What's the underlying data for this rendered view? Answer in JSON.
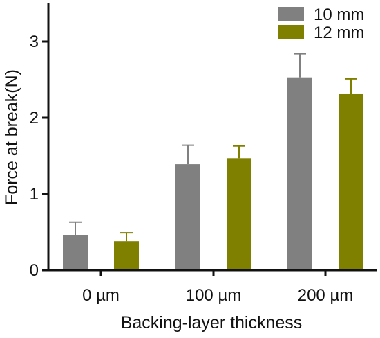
{
  "chart_data": {
    "type": "bar",
    "categories": [
      "0 µm",
      "100 µm",
      "200 µm"
    ],
    "series": [
      {
        "name": "10 mm",
        "color": "#808080",
        "values": [
          0.46,
          1.39,
          2.53
        ],
        "errors": [
          0.17,
          0.25,
          0.31
        ]
      },
      {
        "name": "12 mm",
        "color": "#808000",
        "values": [
          0.38,
          1.47,
          2.31
        ],
        "errors": [
          0.11,
          0.16,
          0.2
        ]
      }
    ],
    "title": "",
    "xlabel": "Backing-layer thickness",
    "ylabel": "Force at break(N)",
    "ylim": [
      0,
      3.5
    ],
    "yticks": [
      0,
      1,
      2,
      3
    ],
    "grid": false,
    "legend_position": "top-right"
  }
}
